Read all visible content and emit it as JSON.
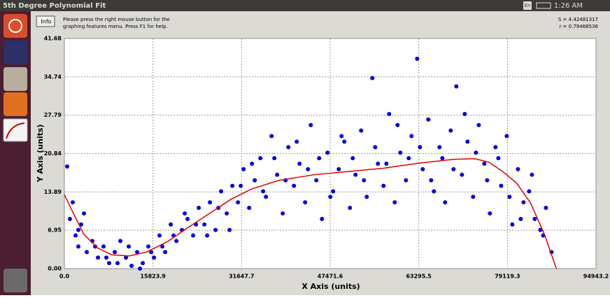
{
  "top_bar": {
    "title": "5th Degree Polynomial Fit",
    "keyboard": "En",
    "time": "1:26 AM"
  },
  "toolbar": {
    "info_button": "Info",
    "help_line_1": "Please press the right mouse button for the",
    "help_line_2": "graphing features menu.  Press F1 for help.",
    "stat_s": "S = 4.42481317",
    "stat_r": "r = 0.79468536"
  },
  "chart_data": {
    "type": "scatter",
    "xlabel": "X Axis (units)",
    "ylabel": "Y Axis (units)",
    "xlim": [
      0,
      94943.2
    ],
    "ylim": [
      0,
      41.68
    ],
    "xticks": [
      {
        "value": 0,
        "label": "0.0"
      },
      15823.9,
      31647.7,
      47471.6,
      63295.5,
      79119.3,
      94943.2
    ],
    "yticks": [
      {
        "value": 0,
        "label": "0.00"
      },
      6.95,
      13.89,
      20.84,
      27.79,
      34.74,
      41.68
    ],
    "grid": true,
    "color": "#0000e0",
    "x": [
      500,
      1000,
      1500,
      2000,
      2500,
      3000,
      4000,
      5000,
      6000,
      7000,
      8000,
      9000,
      10000,
      11000,
      12000,
      13000,
      14000,
      15000,
      16000,
      17000,
      18000,
      19000,
      20000,
      21000,
      22000,
      23000,
      24000,
      25000,
      26000,
      27000,
      28000,
      29000,
      30000,
      31000,
      32000,
      33000,
      34000,
      35000,
      36000,
      37000,
      38000,
      39000,
      40000,
      41000,
      42000,
      43000,
      44000,
      45000,
      46000,
      47000,
      48000,
      49000,
      50000,
      51000,
      52000,
      53000,
      54000,
      55000,
      56000,
      57000,
      58000,
      59000,
      60000,
      61000,
      62000,
      63000,
      64000,
      65000,
      66000,
      67000,
      68000,
      69000,
      70000,
      71000,
      72000,
      73000,
      74000,
      75000,
      76000,
      77000,
      78000,
      79000,
      80000,
      81000,
      82000,
      83000,
      84000,
      85000,
      86000,
      87000,
      2500,
      3500,
      5500,
      7500,
      9500,
      11500,
      13500,
      15500,
      17500,
      19500,
      21500,
      23500,
      25500,
      27500,
      29500,
      31500,
      33500,
      35500,
      37500,
      39500,
      41500,
      43500,
      45500,
      47500,
      49500,
      51500,
      53500,
      55500,
      57500,
      59500,
      61500,
      63500,
      65500,
      67500,
      69500,
      71500,
      73500,
      75500,
      77500,
      79500,
      81500,
      83500,
      85500
    ],
    "values": [
      18.5,
      9,
      12,
      6,
      4,
      8,
      3,
      5,
      2,
      4,
      1,
      3,
      5,
      2,
      0.5,
      3,
      1,
      4,
      2,
      6,
      3,
      8,
      5,
      7,
      9,
      6,
      11,
      8,
      12,
      7,
      14,
      10,
      15,
      12,
      18,
      11,
      16,
      20,
      13,
      24,
      17,
      10,
      22,
      15,
      19,
      12,
      26,
      16,
      9,
      21,
      14,
      18,
      23,
      11,
      17,
      25,
      13,
      34.5,
      19,
      15,
      28,
      12,
      21,
      16,
      24,
      38,
      18,
      27,
      14,
      22,
      12,
      25,
      33,
      17,
      23,
      13,
      26,
      19,
      10,
      22,
      15,
      24,
      8,
      18,
      12,
      14,
      9,
      7,
      11,
      3,
      7,
      10,
      4,
      2,
      1,
      4,
      0,
      3,
      4,
      6,
      10,
      8,
      6,
      11,
      7,
      15,
      19,
      14,
      20,
      16,
      23,
      18,
      20,
      13,
      24,
      20,
      16,
      22,
      19,
      26,
      20,
      22,
      16,
      20,
      18,
      28,
      21,
      16,
      20,
      13,
      9,
      17,
      6
    ],
    "fit": {
      "color": "#e00000",
      "x": [
        0,
        1617,
        3486,
        5980,
        8473,
        11586,
        14700,
        18440,
        22180,
        25918,
        29657,
        33396,
        38380,
        44612,
        50843,
        57075,
        63306,
        69538,
        73278,
        75770,
        78263,
        80756,
        83249,
        85742,
        87860
      ],
      "values": [
        13.4,
        10.0,
        6.2,
        3.7,
        2.5,
        2.3,
        3.0,
        4.9,
        7.5,
        10.0,
        12.5,
        14.4,
        16.0,
        17.0,
        17.6,
        18.2,
        19.1,
        19.8,
        19.9,
        19.3,
        17.6,
        15.5,
        11.9,
        6.2,
        0
      ]
    }
  }
}
